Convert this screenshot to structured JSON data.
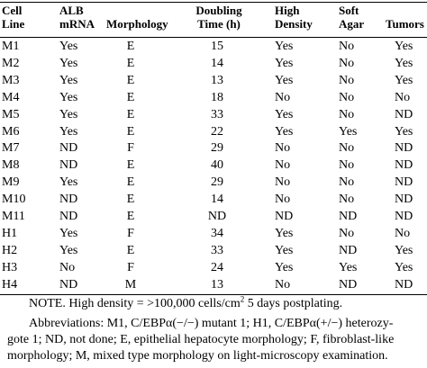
{
  "headers": {
    "cell_line": [
      "Cell",
      "Line"
    ],
    "alb": [
      "ALB",
      "mRNA"
    ],
    "morphology": [
      "",
      "Morphology"
    ],
    "doubling": [
      "Doubling",
      "Time (h)"
    ],
    "high_density": [
      "High",
      "Density"
    ],
    "soft_agar": [
      "Soft",
      "Agar"
    ],
    "tumors": [
      "",
      "Tumors"
    ]
  },
  "rows": [
    [
      "M1",
      "Yes",
      "E",
      "15",
      "Yes",
      "No",
      "Yes"
    ],
    [
      "M2",
      "Yes",
      "E",
      "14",
      "Yes",
      "No",
      "Yes"
    ],
    [
      "M3",
      "Yes",
      "E",
      "13",
      "Yes",
      "No",
      "Yes"
    ],
    [
      "M4",
      "Yes",
      "E",
      "18",
      "No",
      "No",
      "No"
    ],
    [
      "M5",
      "Yes",
      "E",
      "33",
      "Yes",
      "No",
      "ND"
    ],
    [
      "M6",
      "Yes",
      "E",
      "22",
      "Yes",
      "Yes",
      "Yes"
    ],
    [
      "M7",
      "ND",
      "F",
      "29",
      "No",
      "No",
      "ND"
    ],
    [
      "M8",
      "ND",
      "E",
      "40",
      "No",
      "No",
      "ND"
    ],
    [
      "M9",
      "Yes",
      "E",
      "29",
      "No",
      "No",
      "ND"
    ],
    [
      "M10",
      "ND",
      "E",
      "14",
      "No",
      "No",
      "ND"
    ],
    [
      "M11",
      "ND",
      "E",
      "ND",
      "ND",
      "ND",
      "ND"
    ],
    [
      "H1",
      "Yes",
      "F",
      "34",
      "Yes",
      "No",
      "No"
    ],
    [
      "H2",
      "Yes",
      "E",
      "33",
      "Yes",
      "ND",
      "Yes"
    ],
    [
      "H3",
      "No",
      "F",
      "24",
      "Yes",
      "Yes",
      "Yes"
    ],
    [
      "H4",
      "ND",
      "M",
      "13",
      "No",
      "ND",
      "ND"
    ]
  ],
  "note": {
    "prefix": "NOTE. High density = >100,000 cells/cm",
    "sup": "2",
    "suffix": " 5 days postplating."
  },
  "abbreviations": {
    "line1": "Abbreviations: M1, C/EBPα(−/−) mutant 1; H1, C/EBPα(+/−) heterozy-",
    "line2": "gote 1; ND, not done; E, epithelial hepatocyte morphology; F, fibroblast-like",
    "line3": "morphology; M, mixed type morphology on light-microscopy examination."
  }
}
